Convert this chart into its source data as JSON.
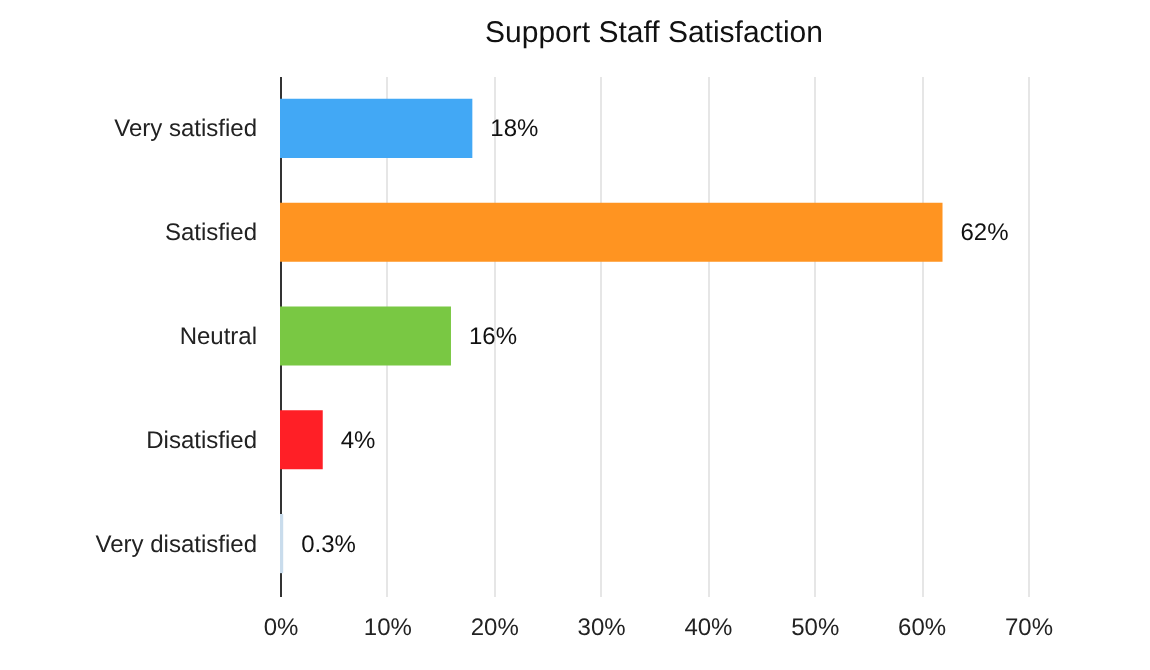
{
  "chart_data": {
    "type": "bar",
    "orientation": "horizontal",
    "title": "Support Staff Satisfaction",
    "categories": [
      "Very satisfied",
      "Satisfied",
      "Neutral",
      "Disatisfied",
      "Very disatisfied"
    ],
    "values": [
      18,
      62,
      16,
      4,
      0.3
    ],
    "colors": [
      "#42a8f5",
      "#ff9421",
      "#79c843",
      "#ff1f26",
      "#c9dcec"
    ],
    "value_labels": [
      "18%",
      "62%",
      "16%",
      "4%",
      "0.3%"
    ],
    "xlim": [
      0,
      70
    ],
    "xticks": [
      {
        "value": 0,
        "label": "0%"
      },
      {
        "value": 10,
        "label": "10%"
      },
      {
        "value": 20,
        "label": "20%"
      },
      {
        "value": 30,
        "label": "30%"
      },
      {
        "value": 40,
        "label": "40%"
      },
      {
        "value": 50,
        "label": "50%"
      },
      {
        "value": 60,
        "label": "60%"
      },
      {
        "value": 70,
        "label": "70%"
      }
    ],
    "grid": "x"
  }
}
